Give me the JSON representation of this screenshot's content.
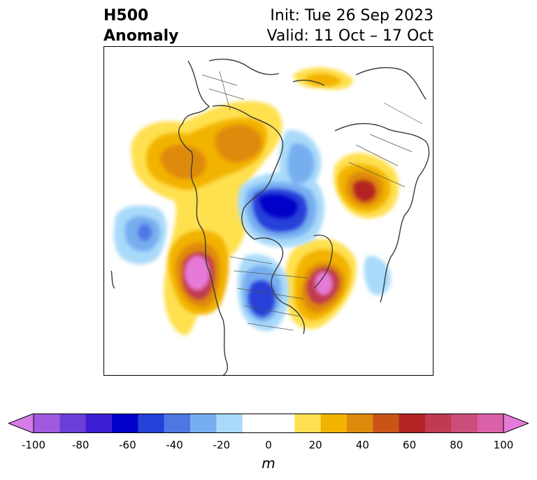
{
  "header": {
    "title_line1": "H500",
    "title_line2": "Anomaly",
    "init_text": "Init: Tue 26 Sep 2023",
    "valid_text": "Valid: 11 Oct – 17 Oct"
  },
  "colorbar": {
    "label": "m",
    "ticks": [
      "-100",
      "-80",
      "-60",
      "-40",
      "-20",
      "0",
      "20",
      "40",
      "60",
      "80",
      "100"
    ],
    "colors": [
      "#d57ce9",
      "#9f5ae0",
      "#6a3fd9",
      "#3d1fd3",
      "#0000c8",
      "#2641d8",
      "#4f77e4",
      "#77aef0",
      "#a9dafa",
      "#ffffff",
      "#ffffff",
      "#ffe050",
      "#f2b200",
      "#de8a0c",
      "#c95418",
      "#b42424",
      "#c03a50",
      "#cc4c7a",
      "#da60a8",
      "#e67ad8"
    ]
  }
}
